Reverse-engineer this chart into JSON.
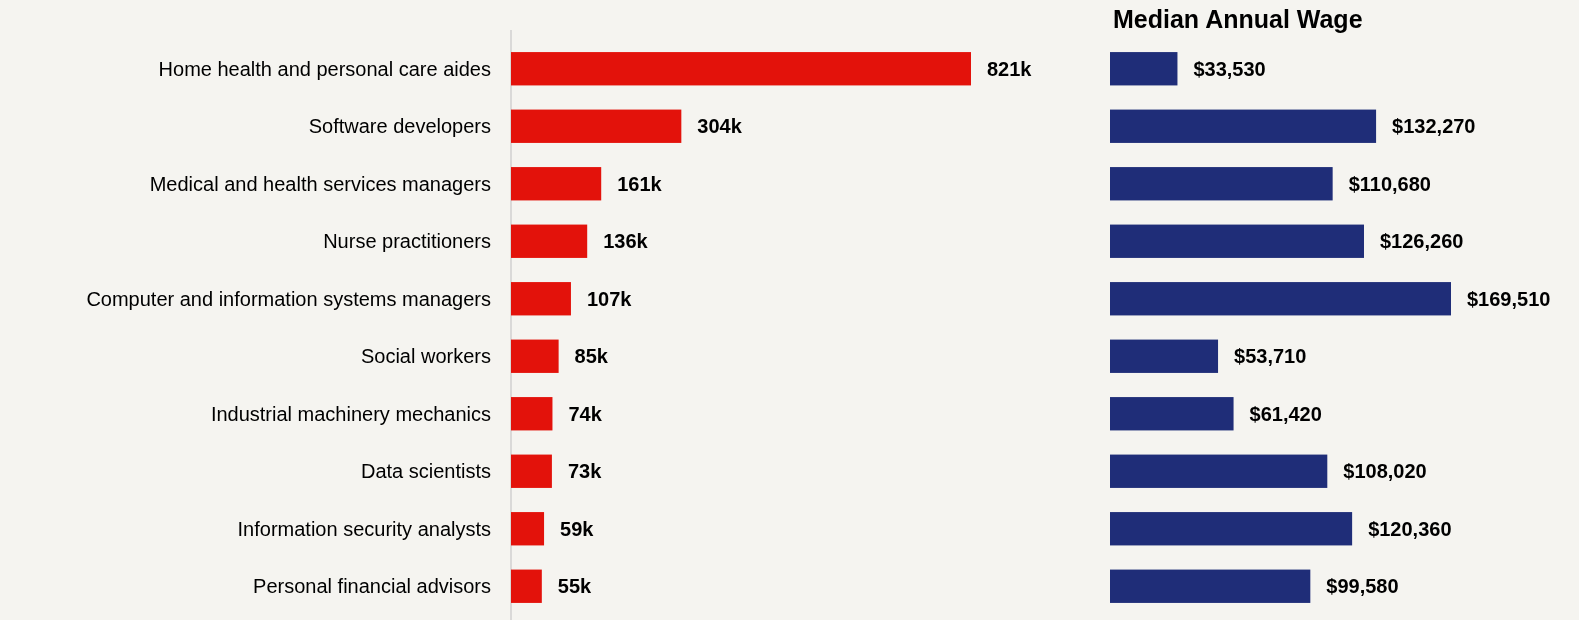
{
  "chart_data": [
    {
      "type": "bar",
      "orientation": "horizontal",
      "categories": [
        "Home health and personal care aides",
        "Software developers",
        "Medical and health services managers",
        "Nurse practitioners",
        "Computer and information systems managers",
        "Social workers",
        "Industrial machinery mechanics",
        "Data scientists",
        "Information security analysts",
        "Personal financial advisors"
      ],
      "values": [
        821,
        304,
        161,
        136,
        107,
        85,
        74,
        73,
        59,
        55
      ],
      "value_labels": [
        "821k",
        "304k",
        "161k",
        "136k",
        "107k",
        "85k",
        "74k",
        "73k",
        "59k",
        "55k"
      ],
      "color": "#e3120b",
      "tick_labels": "x"
    },
    {
      "type": "bar",
      "orientation": "horizontal",
      "title": "Median Annual Wage",
      "categories": [
        null,
        null,
        null,
        null,
        null,
        null,
        null,
        null,
        null,
        null
      ],
      "values": [
        33530,
        132270,
        110680,
        126260,
        169510,
        53710,
        61420,
        108020,
        120360,
        99580
      ],
      "value_labels": [
        "$33,530",
        "$132,270",
        "$110,680",
        "$126,260",
        "$169,510",
        "$53,710",
        "$61,420",
        "$108,020",
        "$120,360",
        "$99,580"
      ],
      "color": "#1f2d78",
      "tick_labels": false
    }
  ]
}
